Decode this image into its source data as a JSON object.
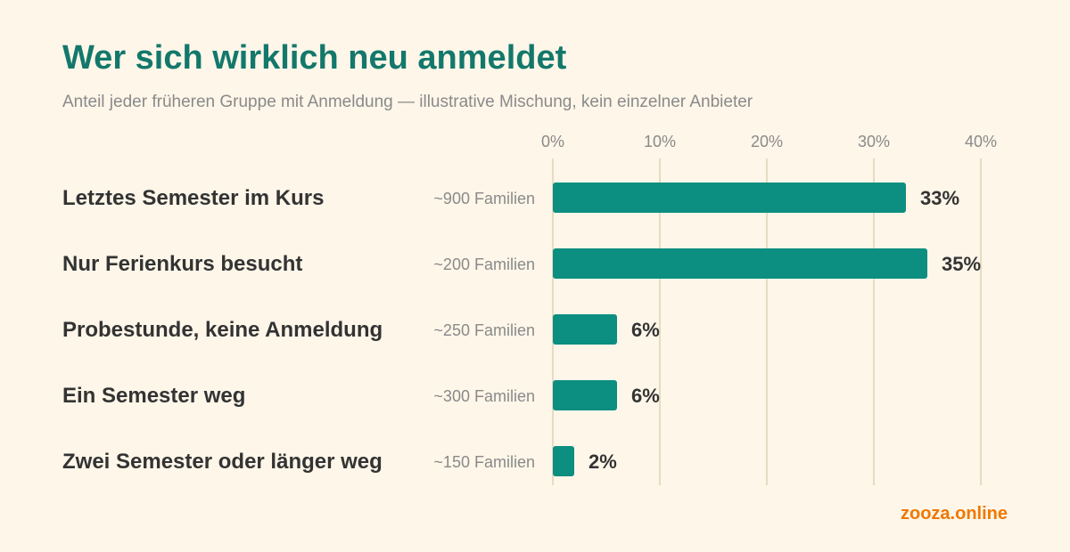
{
  "title": "Wer sich wirklich neu anmeldet",
  "subtitle": "Anteil jeder früheren Gruppe mit Anmeldung — illustrative Mischung, kein einzelner Anbieter",
  "brand": "zooza.online",
  "colors": {
    "background": "#fdf6e9",
    "title": "#13786b",
    "bar": "#0c8e80",
    "grid": "#e6dcc2",
    "brand": "#f07800"
  },
  "chart_data": {
    "type": "bar",
    "orientation": "horizontal",
    "categories": [
      "Letztes Semester im Kurs",
      "Nur Ferienkurs besucht",
      "Probestunde, keine Anmeldung",
      "Ein Semester weg",
      "Zwei Semester oder länger weg"
    ],
    "group_sizes": [
      "~900 Familien",
      "~200 Familien",
      "~250 Familien",
      "~300 Familien",
      "~150 Familien"
    ],
    "values": [
      33,
      35,
      6,
      6,
      2
    ],
    "value_labels": [
      "33%",
      "35%",
      "6%",
      "6%",
      "2%"
    ],
    "xlim": [
      0,
      40
    ],
    "ticks": [
      0,
      10,
      20,
      30,
      40
    ],
    "tick_labels": [
      "0%",
      "10%",
      "20%",
      "30%",
      "40%"
    ],
    "grid": true,
    "axis_position": "top"
  }
}
